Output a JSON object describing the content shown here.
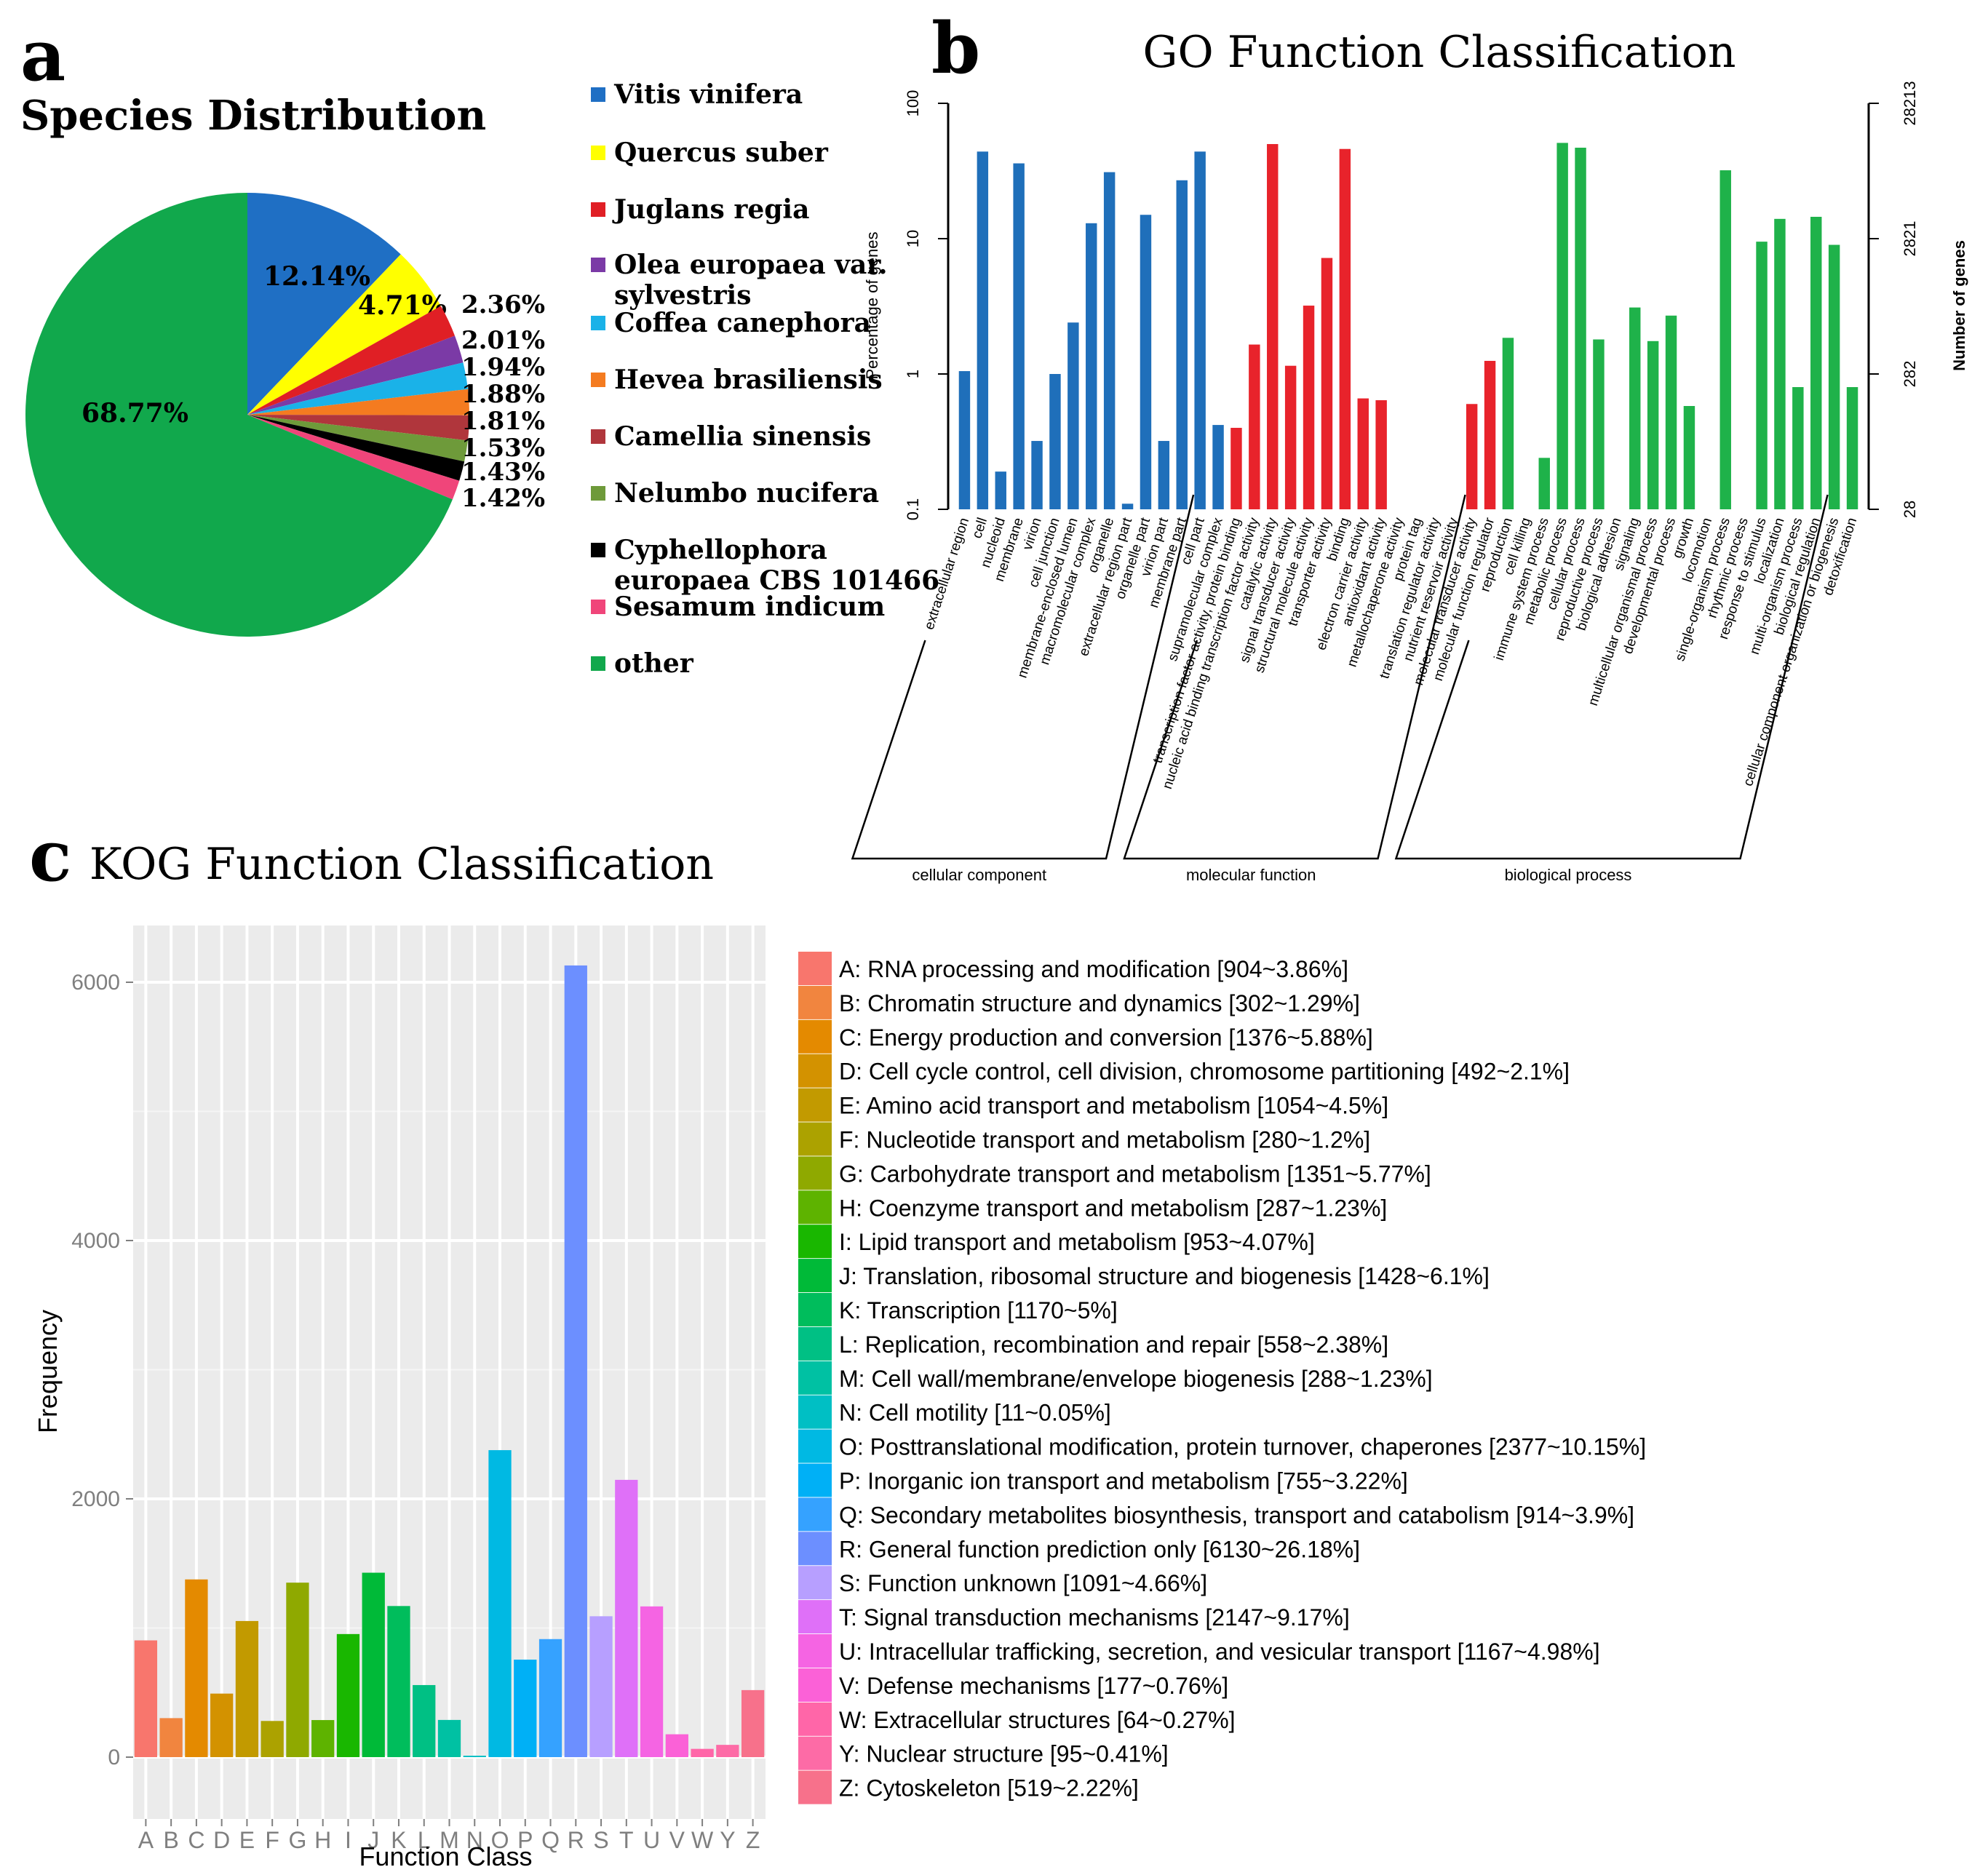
{
  "panels": {
    "a": {
      "letter": "a",
      "chart_data": {
        "type": "pie",
        "title": "Species Distribution",
        "slices": [
          {
            "label": "Vitis vinifera",
            "value": 12.14,
            "value_label": "12.14%",
            "color": "#1f6fc4"
          },
          {
            "label": "Quercus suber",
            "value": 4.71,
            "value_label": "4.71%",
            "color": "#ffff00"
          },
          {
            "label": "Juglans regia",
            "value": 2.36,
            "value_label": "2.36%",
            "color": "#e01f25"
          },
          {
            "label": "Olea europaea var. sylvestris",
            "value": 2.01,
            "value_label": "2.01%",
            "color": "#7b3aa6"
          },
          {
            "label": "Coffea canephora",
            "value": 1.94,
            "value_label": "1.94%",
            "color": "#1ab2e8"
          },
          {
            "label": "Hevea brasiliensis",
            "value": 1.88,
            "value_label": "1.88%",
            "color": "#f47b20"
          },
          {
            "label": "Camellia sinensis",
            "value": 1.81,
            "value_label": "1.81%",
            "color": "#b0363c"
          },
          {
            "label": "Nelumbo nucifera",
            "value": 1.53,
            "value_label": "1.53%",
            "color": "#6e9a3a"
          },
          {
            "label": "Cyphellophora europaea CBS 101466",
            "value": 1.43,
            "value_label": "1.43%",
            "color": "#000000"
          },
          {
            "label": "Sesamum indicum",
            "value": 1.42,
            "value_label": "1.42%",
            "color": "#f0457a"
          },
          {
            "label": "other",
            "value": 68.77,
            "value_label": "68.77%",
            "color": "#11a84c"
          }
        ],
        "legend": [
          "Vitis vinifera",
          "Quercus suber",
          "Juglans regia",
          "Olea europaea var. sylvestris",
          "Coffea canephora",
          "Hevea brasiliensis",
          "Camellia sinensis",
          "Nelumbo nucifera",
          "Cyphellophora europaea CBS 101466",
          "Sesamum indicum",
          "other"
        ],
        "legend_placement": "right"
      }
    },
    "b": {
      "letter": "b",
      "chart_data": {
        "type": "bar",
        "title": "GO Function Classification",
        "ylabel": "Percentage of genes",
        "y2label": "Number of genes",
        "yscale": "log",
        "ylim": [
          0.1,
          100
        ],
        "yticks": [
          "0.1",
          "1",
          "10",
          "100"
        ],
        "y2ticks": [
          "28",
          "282",
          "2821",
          "28213"
        ],
        "grid": false,
        "groups": [
          {
            "name": "cellular component",
            "color": "#1f6fba",
            "categories": [
              "extracellular region",
              "cell",
              "nucleoid",
              "membrane",
              "virion",
              "cell junction",
              "membrane-enclosed lumen",
              "macromolecular complex",
              "organelle",
              "extracellular region part",
              "organelle part",
              "virion part",
              "membrane part",
              "cell part",
              "supramolecular complex"
            ],
            "values": [
              1.05,
              44,
              0.19,
              36,
              0.32,
              1.0,
              2.4,
              13,
              31,
              0.11,
              15,
              0.32,
              27,
              44,
              0.42
            ]
          },
          {
            "name": "molecular function",
            "color": "#e8232b",
            "categories": [
              "transcription factor activity, protein binding",
              "nucleic acid binding transcription factor activity",
              "catalytic activity",
              "signal transducer activity",
              "structural molecule activity",
              "transporter activity",
              "binding",
              "electron carrier activity",
              "antioxidant activity",
              "metallochaperone activity",
              "protein tag",
              "translation regulator activity",
              "nutrient reservoir activity",
              "molecular transducer activity",
              "molecular function regulator"
            ],
            "values": [
              0.4,
              1.65,
              50,
              1.15,
              3.2,
              7.2,
              46,
              0.66,
              0.64,
              0.0,
              0.0,
              0.0,
              0.0,
              0.6,
              1.25
            ]
          },
          {
            "name": "biological process",
            "color": "#1fb24a",
            "categories": [
              "reproduction",
              "cell killing",
              "immune system process",
              "metabolic process",
              "cellular process",
              "reproductive process",
              "biological adhesion",
              "signaling",
              "multicellular organismal process",
              "developmental process",
              "growth",
              "locomotion",
              "single-organism process",
              "rhythmic process",
              "response to stimulus",
              "localization",
              "multi-organism process",
              "biological regulation",
              "cellular component organization or biogenesis",
              "detoxification"
            ],
            "values": [
              1.85,
              0.0,
              0.24,
              51,
              47,
              1.8,
              0.0,
              3.1,
              1.75,
              2.7,
              0.58,
              0.0,
              32,
              0.0,
              9.5,
              14,
              0.8,
              14.5,
              9.0,
              0.8
            ]
          }
        ]
      }
    },
    "c": {
      "letter": "c",
      "chart_data": {
        "type": "bar",
        "title": "KOG Function Classification",
        "xlabel": "Function Class",
        "ylabel": "Frequency",
        "ylim": [
          0,
          6500
        ],
        "yticks": [
          "0",
          "2000",
          "4000",
          "6000"
        ],
        "grid": true,
        "categories": [
          "A",
          "B",
          "C",
          "D",
          "E",
          "F",
          "G",
          "H",
          "I",
          "J",
          "K",
          "L",
          "M",
          "N",
          "O",
          "P",
          "Q",
          "R",
          "S",
          "T",
          "U",
          "V",
          "W",
          "Y",
          "Z"
        ],
        "values": [
          904,
          302,
          1376,
          492,
          1054,
          280,
          1351,
          287,
          953,
          1428,
          1170,
          558,
          288,
          11,
          2377,
          755,
          914,
          6130,
          1091,
          2147,
          1167,
          177,
          64,
          95,
          519
        ],
        "colors": [
          "#f8766d",
          "#f1853f",
          "#e48a00",
          "#d39200",
          "#c29a00",
          "#aca200",
          "#8fa900",
          "#5eb300",
          "#19b700",
          "#00ba38",
          "#00bd5c",
          "#00c084",
          "#00c1a3",
          "#00bfc4",
          "#00b9e3",
          "#00b0f6",
          "#35a2ff",
          "#6c8fff",
          "#b79fff",
          "#df70f8",
          "#f564e3",
          "#fb61d7",
          "#ff66a8",
          "#fd6ba6",
          "#f7718b"
        ],
        "legend": [
          "A: RNA processing and modification [904~3.86%]",
          "B: Chromatin structure and dynamics [302~1.29%]",
          "C: Energy production and conversion [1376~5.88%]",
          "D: Cell cycle control, cell division, chromosome partitioning [492~2.1%]",
          "E: Amino acid transport and metabolism [1054~4.5%]",
          "F: Nucleotide transport and metabolism [280~1.2%]",
          "G: Carbohydrate transport and metabolism [1351~5.77%]",
          "H: Coenzyme transport and metabolism [287~1.23%]",
          "I: Lipid transport and metabolism [953~4.07%]",
          "J: Translation, ribosomal structure and biogenesis [1428~6.1%]",
          "K: Transcription [1170~5%]",
          "L: Replication, recombination and repair [558~2.38%]",
          "M: Cell wall/membrane/envelope biogenesis [288~1.23%]",
          "N: Cell motility [11~0.05%]",
          "O: Posttranslational modification, protein turnover, chaperones [2377~10.15%]",
          "P: Inorganic ion transport and metabolism [755~3.22%]",
          "Q: Secondary metabolites biosynthesis, transport and catabolism [914~3.9%]",
          "R: General function prediction only [6130~26.18%]",
          "S: Function unknown [1091~4.66%]",
          "T: Signal transduction mechanisms [2147~9.17%]",
          "U: Intracellular trafficking, secretion, and vesicular transport [1167~4.98%]",
          "V: Defense mechanisms [177~0.76%]",
          "W: Extracellular structures [64~0.27%]",
          "Y: Nuclear structure [95~0.41%]",
          "Z: Cytoskeleton [519~2.22%]"
        ],
        "legend_placement": "right"
      }
    }
  }
}
